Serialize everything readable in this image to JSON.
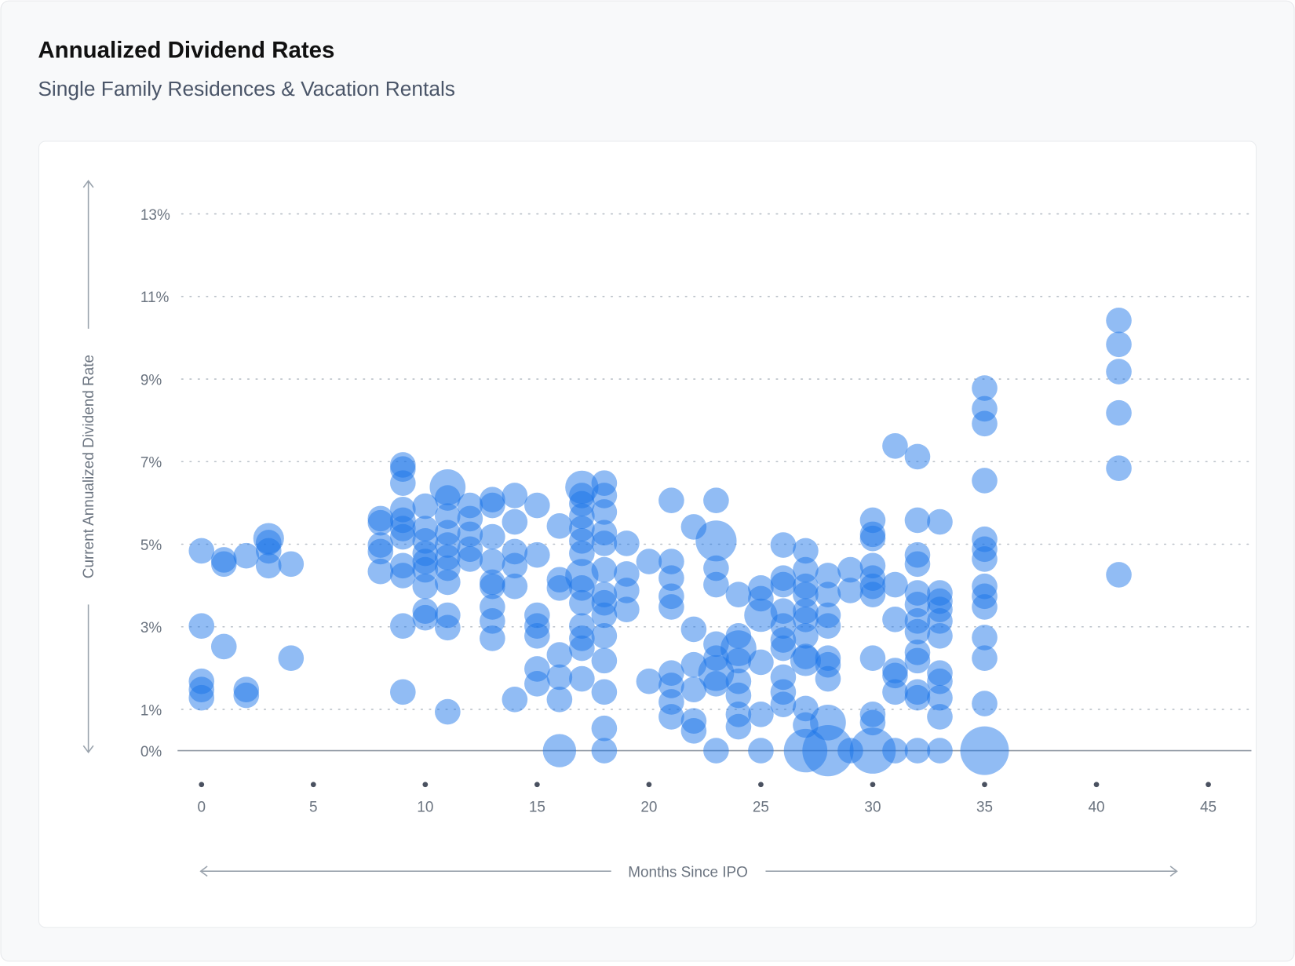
{
  "chart_data": {
    "type": "bubble",
    "title": "Annualized Dividend Rates",
    "subtitle": "Single Family Residences & Vacation Rentals",
    "x_label": "Months Since IPO",
    "y_label": "Current Annualized Dividend Rate",
    "color": "#1a73e8",
    "grid": true,
    "xlim": [
      -1,
      47
    ],
    "xticks": [
      0,
      5,
      10,
      15,
      20,
      25,
      30,
      35,
      40,
      45
    ],
    "ylim": [
      0,
      13.8
    ],
    "yticks": [
      {
        "value": 0,
        "label": "0%"
      },
      {
        "value": 1,
        "label": "1%"
      },
      {
        "value": 3,
        "label": "3%"
      },
      {
        "value": 5,
        "label": "5%"
      },
      {
        "value": 7,
        "label": "7%"
      },
      {
        "value": 9,
        "label": "9%"
      },
      {
        "value": 11,
        "label": "11%"
      },
      {
        "value": 13,
        "label": "13%"
      }
    ],
    "x": [
      0,
      0,
      0,
      0,
      0,
      1,
      1,
      1,
      2,
      2,
      2,
      3,
      3,
      3,
      3,
      4,
      4,
      8,
      8,
      8,
      8,
      8,
      9,
      9,
      9,
      9,
      9,
      9,
      9,
      9,
      9,
      9,
      9,
      10,
      10,
      10,
      10,
      10,
      10,
      10,
      10,
      10,
      11,
      11,
      11,
      11,
      11,
      11,
      11,
      11,
      11,
      11,
      11,
      12,
      12,
      12,
      12,
      12,
      13,
      13,
      13,
      13,
      13,
      13,
      13,
      13,
      13,
      14,
      14,
      14,
      14,
      14,
      14,
      15,
      15,
      15,
      15,
      15,
      15,
      15,
      16,
      16,
      16,
      16,
      16,
      16,
      16,
      17,
      17,
      17,
      17,
      17,
      17,
      17,
      17,
      17,
      17,
      17,
      17,
      17,
      17,
      18,
      18,
      18,
      18,
      18,
      18,
      18,
      18,
      18,
      18,
      18,
      18,
      18,
      18,
      19,
      19,
      19,
      19,
      20,
      20,
      21,
      21,
      21,
      21,
      21,
      21,
      21,
      21,
      21,
      22,
      22,
      22,
      22,
      22,
      22,
      23,
      23,
      23,
      23,
      23,
      23,
      23,
      23,
      23,
      24,
      24,
      24,
      24,
      24,
      24,
      24,
      24,
      25,
      25,
      25,
      25,
      25,
      25,
      26,
      26,
      26,
      26,
      26,
      26,
      26,
      26,
      26,
      26,
      27,
      27,
      27,
      27,
      27,
      27,
      27,
      27,
      27,
      27,
      27,
      27,
      28,
      28,
      28,
      28,
      28,
      28,
      28,
      28,
      28,
      29,
      29,
      29,
      30,
      30,
      30,
      30,
      30,
      30,
      30,
      30,
      30,
      30,
      30,
      31,
      31,
      31,
      31,
      31,
      31,
      31,
      32,
      32,
      32,
      32,
      32,
      32,
      32,
      32,
      32,
      32,
      32,
      32,
      32,
      33,
      33,
      33,
      33,
      33,
      33,
      33,
      33,
      33,
      33,
      33,
      35,
      35,
      35,
      35,
      35,
      35,
      35,
      35,
      35,
      35,
      35,
      35,
      35,
      35,
      41,
      41,
      41,
      41,
      41,
      41
    ],
    "values": [
      4.84,
      3.02,
      1.68,
      1.48,
      1.28,
      4.62,
      4.52,
      2.52,
      4.72,
      1.48,
      1.34,
      5.14,
      5.04,
      4.84,
      4.48,
      4.52,
      2.24,
      5.62,
      5.52,
      4.98,
      4.82,
      4.34,
      6.92,
      6.82,
      6.48,
      5.84,
      5.58,
      5.38,
      5.18,
      4.48,
      4.24,
      3.02,
      1.42,
      5.92,
      5.38,
      5.08,
      4.78,
      4.58,
      4.38,
      3.98,
      3.38,
      3.22,
      6.38,
      6.12,
      5.68,
      5.28,
      4.98,
      4.68,
      4.42,
      4.08,
      3.28,
      2.98,
      0.94,
      5.94,
      5.62,
      5.24,
      4.88,
      4.64,
      6.08,
      5.94,
      5.18,
      4.58,
      4.08,
      3.98,
      3.48,
      3.14,
      2.72,
      6.18,
      5.54,
      4.82,
      4.48,
      3.98,
      1.24,
      5.94,
      4.74,
      3.28,
      3.02,
      2.78,
      1.98,
      1.62,
      5.44,
      4.14,
      3.94,
      2.32,
      1.78,
      1.24,
      0,
      6.38,
      6.18,
      5.98,
      5.68,
      5.38,
      5.08,
      4.78,
      4.24,
      3.94,
      3.58,
      3.02,
      2.72,
      2.48,
      1.74,
      6.48,
      6.18,
      5.78,
      5.28,
      5.02,
      4.38,
      3.78,
      3.58,
      3.28,
      2.78,
      2.18,
      1.42,
      0.54,
      0,
      5.02,
      4.28,
      3.88,
      3.42,
      4.58,
      1.68,
      6.06,
      4.58,
      4.18,
      3.74,
      3.48,
      1.88,
      1.58,
      1.18,
      0.82,
      5.42,
      2.94,
      2.08,
      1.48,
      0.72,
      0.48,
      6.06,
      5.08,
      4.42,
      4.02,
      2.58,
      2.24,
      1.88,
      1.62,
      0,
      3.78,
      2.78,
      2.48,
      2.18,
      1.68,
      1.34,
      0.88,
      0.58,
      3.94,
      3.68,
      3.28,
      2.14,
      0.88,
      0,
      4.98,
      4.18,
      4.02,
      3.38,
      3.02,
      2.68,
      2.48,
      1.78,
      1.42,
      1.12,
      4.84,
      4.38,
      3.98,
      3.78,
      3.38,
      3.18,
      2.78,
      2.28,
      2.18,
      1.02,
      0.62,
      0,
      4.24,
      3.78,
      3.28,
      3.02,
      2.24,
      2.08,
      1.74,
      0.68,
      0,
      4.38,
      3.88,
      0,
      5.58,
      5.24,
      5.14,
      4.48,
      4.18,
      3.98,
      3.78,
      2.24,
      0.88,
      0.68,
      0,
      7.38,
      4.02,
      3.18,
      1.94,
      1.82,
      1.42,
      0,
      7.12,
      5.58,
      4.74,
      4.52,
      3.82,
      3.54,
      3.14,
      2.88,
      2.38,
      2.18,
      1.42,
      1.28,
      0,
      5.54,
      3.82,
      3.62,
      3.42,
      3.14,
      2.78,
      1.88,
      1.68,
      1.28,
      0.82,
      0,
      8.78,
      8.28,
      7.92,
      6.54,
      5.12,
      4.88,
      4.64,
      3.98,
      3.74,
      3.48,
      2.74,
      2.24,
      1.14,
      0,
      10.42,
      9.84,
      9.18,
      8.18,
      6.84,
      4.26
    ],
    "sizes": [
      1,
      1,
      1,
      1,
      1,
      1,
      1,
      1,
      1,
      1,
      1,
      1.2,
      1,
      1,
      1,
      1,
      1,
      1,
      1,
      1,
      1,
      1,
      1,
      1,
      1,
      1,
      1,
      1,
      1,
      1,
      1,
      1,
      1,
      1,
      1,
      1,
      1,
      1,
      1,
      1,
      1,
      1,
      1.4,
      1,
      1,
      1,
      1,
      1,
      1,
      1,
      1,
      1,
      1,
      1,
      1,
      1,
      1,
      1,
      1,
      1,
      1,
      1,
      1,
      1,
      1,
      1,
      1,
      1,
      1,
      1,
      1,
      1,
      1,
      1,
      1,
      1,
      1,
      1,
      1,
      1,
      1,
      1,
      1,
      1,
      1,
      1,
      1.3,
      1.3,
      1,
      1,
      1,
      1,
      1,
      1,
      1.3,
      1,
      1,
      1,
      1,
      1,
      1,
      1,
      1,
      1,
      1,
      1,
      1,
      1,
      1,
      1,
      1,
      1,
      1,
      1,
      1,
      1,
      1,
      1,
      1,
      1,
      1,
      1,
      1,
      1,
      1,
      1,
      1,
      1,
      1,
      1,
      1,
      1,
      1,
      1,
      1,
      1,
      1,
      1.6,
      1,
      1,
      1,
      1,
      1.4,
      1,
      1,
      1,
      1,
      1.4,
      1,
      1,
      1,
      1,
      1,
      1,
      1,
      1.3,
      1,
      1,
      1,
      1,
      1,
      1,
      1,
      1,
      1,
      1,
      1,
      1,
      1,
      1,
      1,
      1,
      1,
      1,
      1,
      1,
      1,
      1.2,
      1,
      1,
      1.7,
      1,
      1,
      1,
      1,
      1,
      1,
      1,
      1.4,
      2,
      1,
      1,
      1,
      1,
      1,
      1,
      1,
      1,
      1,
      1,
      1,
      1,
      1,
      1.8,
      1,
      1,
      1,
      1,
      1,
      1,
      1,
      1,
      1,
      1,
      1,
      1,
      1,
      1,
      1,
      1,
      1,
      1,
      1,
      1,
      1,
      1,
      1,
      1,
      1,
      1,
      1,
      1,
      1,
      1,
      1,
      1,
      1,
      1,
      1,
      1,
      1,
      1,
      1,
      1,
      1,
      1,
      1,
      1,
      1.9,
      1,
      1,
      1,
      1,
      1,
      1
    ]
  }
}
